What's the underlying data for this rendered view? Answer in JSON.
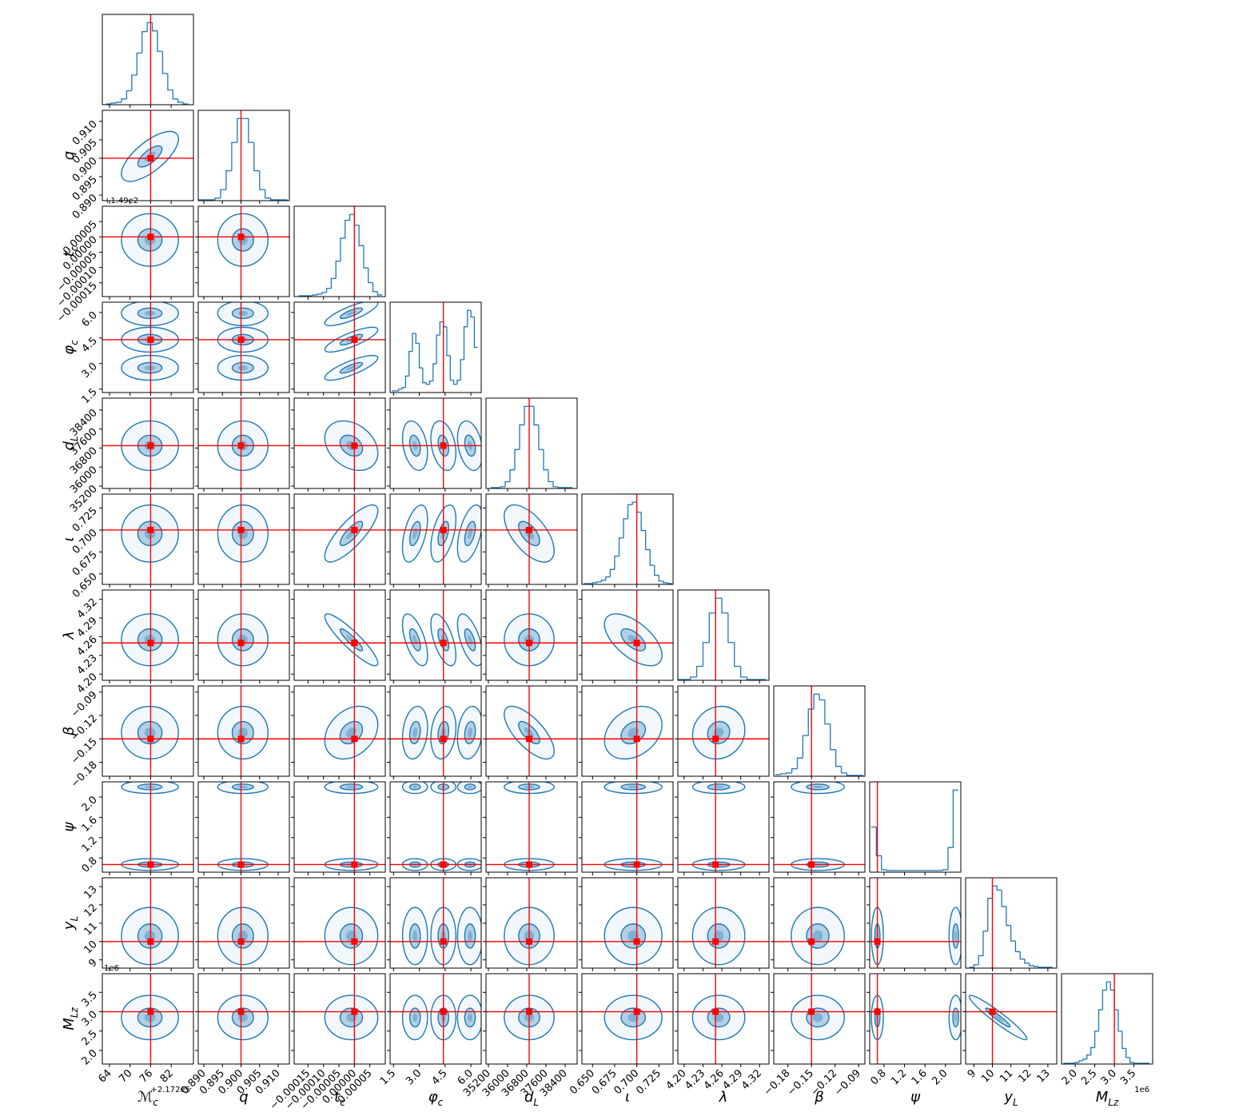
{
  "chart_data": {
    "type": "corner",
    "color": "#1f77b4",
    "truth_color": "#ff0000",
    "parameters": [
      {
        "symbol": "ℳ",
        "subscript": "c",
        "x_offset": "+2.172e5",
        "lim": [
          61.9,
          88.5
        ],
        "ticks": [
          64,
          70,
          76,
          82
        ],
        "truth": 76,
        "bins": [
          63,
          64.5,
          66,
          67.5,
          69,
          70.5,
          72,
          73.5,
          75,
          76.5,
          78,
          79.5,
          81,
          82.5,
          84,
          85.5,
          87
        ],
        "counts": [
          1,
          2,
          3,
          7,
          17,
          36,
          63,
          89,
          100,
          90,
          65,
          38,
          18,
          7,
          3,
          1
        ],
        "modes": [
          {
            "mean": 75.8,
            "sd": 3.2
          }
        ]
      },
      {
        "symbol": "q",
        "lim": [
          0.8885,
          0.913
        ],
        "ticks": [
          {
            "value": 0.89,
            "label": "0.890"
          },
          0.895,
          {
            "value": 0.9,
            "label": "0.900"
          },
          0.905,
          {
            "value": 0.91,
            "label": "0.910"
          }
        ],
        "truth": 0.9,
        "bins": [
          0.8885,
          0.89,
          0.8915,
          0.893,
          0.8945,
          0.896,
          0.8975,
          0.899,
          0.9005,
          0.902,
          0.9035,
          0.905,
          0.9065,
          0.908,
          0.9095,
          0.911,
          0.9125
        ],
        "counts": [
          1,
          1,
          1,
          3,
          13,
          35,
          68,
          96,
          96,
          68,
          35,
          13,
          3,
          1,
          1,
          1
        ],
        "modes": [
          {
            "mean": 0.9005,
            "sd": 0.0026
          }
        ]
      },
      {
        "symbol": "t",
        "subscript": "c",
        "y_offset": "+1.49e2",
        "lim": [
          -0.000195,
          0.0001
        ],
        "ticks": [
          {
            "value": -0.00015,
            "label": "−0.00015"
          },
          {
            "value": -0.0001,
            "label": "−0.00010"
          },
          {
            "value": -5e-05,
            "label": "−0.00005"
          },
          {
            "value": 0,
            "label": "0.00000"
          },
          5e-05
        ],
        "truth": 0,
        "bins": [
          -0.00018,
          -0.000165,
          -0.00015,
          -0.000135,
          -0.00012,
          -0.000105,
          -9e-05,
          -7.5e-05,
          -6e-05,
          -4.5e-05,
          -3e-05,
          -1.5e-05,
          0,
          1.5e-05,
          3e-05,
          4.5e-05,
          6e-05,
          7.5e-05,
          9e-05
        ],
        "counts": [
          1,
          1,
          1,
          2,
          3,
          5,
          10,
          22,
          43,
          71,
          93,
          100,
          87,
          62,
          35,
          17,
          6,
          2
        ],
        "modes": [
          {
            "mean": -1e-05,
            "sd": 3.3e-05
          }
        ]
      },
      {
        "symbol": "φ",
        "subscript": "c",
        "lim": [
          1.3,
          6.6
        ],
        "ticks": [
          1.5,
          {
            "value": 3,
            "label": "3.0"
          },
          4.5,
          {
            "value": 6,
            "label": "6.0"
          }
        ],
        "truth": 4.4,
        "bins": [
          1.4,
          1.6,
          1.8,
          2.0,
          2.2,
          2.4,
          2.6,
          2.8,
          3.0,
          3.2,
          3.4,
          3.6,
          3.8,
          4.0,
          4.2,
          4.4,
          4.6,
          4.8,
          5.0,
          5.2,
          5.4,
          5.6,
          5.8,
          6.0,
          6.2,
          6.4
        ],
        "counts": [
          2,
          2,
          4,
          6,
          20,
          50,
          72,
          60,
          30,
          12,
          10,
          14,
          35,
          70,
          86,
          80,
          45,
          15,
          10,
          15,
          40,
          80,
          100,
          92,
          55
        ],
        "modes": [
          {
            "mean": 2.75,
            "sd": 0.28
          },
          {
            "mean": 4.4,
            "sd": 0.28
          },
          {
            "mean": 5.95,
            "sd": 0.28
          }
        ]
      },
      {
        "symbol": "d",
        "subscript": "L",
        "lim": [
          35100,
          38900
        ],
        "ticks": [
          35200,
          36000,
          36800,
          37600,
          38400
        ],
        "truth": 36900,
        "bins": [
          35300,
          35500,
          35700,
          35900,
          36100,
          36300,
          36500,
          36700,
          36900,
          37100,
          37300,
          37500,
          37700,
          37900,
          38100,
          38300,
          38500,
          38700
        ],
        "counts": [
          1,
          1,
          2,
          8,
          22,
          46,
          75,
          97,
          97,
          75,
          46,
          22,
          8,
          2,
          1,
          1,
          1
        ],
        "modes": [
          {
            "mean": 36900,
            "sd": 400
          }
        ]
      },
      {
        "symbol": "ι",
        "lim": [
          0.638,
          0.741
        ],
        "ticks": [
          {
            "value": 0.65,
            "label": "0.650"
          },
          0.675,
          {
            "value": 0.7,
            "label": "0.700"
          },
          0.725
        ],
        "truth": 0.7,
        "bins": [
          0.64,
          0.645,
          0.65,
          0.655,
          0.66,
          0.665,
          0.67,
          0.675,
          0.68,
          0.685,
          0.69,
          0.695,
          0.7,
          0.705,
          0.71,
          0.715,
          0.72,
          0.725,
          0.73,
          0.735,
          0.74
        ],
        "counts": [
          1,
          1,
          2,
          3,
          5,
          9,
          18,
          34,
          56,
          79,
          96,
          99,
          87,
          65,
          42,
          23,
          11,
          4,
          2,
          1
        ],
        "modes": [
          {
            "mean": 0.696,
            "sd": 0.0125
          }
        ]
      },
      {
        "symbol": "λ",
        "lim": [
          4.19,
          4.335
        ],
        "ticks": [
          {
            "value": 4.2,
            "label": "4.20"
          },
          4.23,
          4.26,
          4.29,
          4.32
        ],
        "truth": 4.25,
        "bins": [
          4.19,
          4.2,
          4.21,
          4.22,
          4.23,
          4.24,
          4.25,
          4.26,
          4.27,
          4.28,
          4.29,
          4.3,
          4.31,
          4.32,
          4.33
        ],
        "counts": [
          1,
          1,
          4,
          17,
          46,
          82,
          100,
          82,
          46,
          17,
          4,
          1,
          1,
          1
        ],
        "modes": [
          {
            "mean": 4.255,
            "sd": 0.016
          }
        ]
      },
      {
        "symbol": "β",
        "lim": [
          -0.198,
          -0.082
        ],
        "ticks": [
          {
            "value": -0.18,
            "label": "−0.18"
          },
          {
            "value": -0.15,
            "label": "−0.15"
          },
          {
            "value": -0.12,
            "label": "−0.12"
          },
          {
            "value": -0.09,
            "label": "−0.09"
          }
        ],
        "truth": -0.15,
        "bins": [
          -0.196,
          -0.189,
          -0.182,
          -0.175,
          -0.168,
          -0.161,
          -0.154,
          -0.147,
          -0.14,
          -0.133,
          -0.126,
          -0.119,
          -0.112,
          -0.105,
          -0.098,
          -0.091,
          -0.084
        ],
        "counts": [
          2,
          3,
          4,
          9,
          22,
          49,
          81,
          99,
          92,
          63,
          32,
          12,
          4,
          1,
          1,
          1
        ],
        "modes": [
          {
            "mean": -0.142,
            "sd": 0.013
          }
        ]
      },
      {
        "symbol": "ψ",
        "lim": [
          0.52,
          2.3
        ],
        "ticks": [
          0.8,
          1.2,
          1.6,
          {
            "value": 2,
            "label": "2.0"
          }
        ],
        "truth": 0.67,
        "bins": [
          0.55,
          0.65,
          0.75,
          0.85,
          0.95,
          1.05,
          1.15,
          1.25,
          1.35,
          1.45,
          1.55,
          1.65,
          1.75,
          1.85,
          1.95,
          2.05,
          2.15,
          2.25
        ],
        "counts": [
          55,
          20,
          3,
          2,
          2,
          2,
          2,
          2,
          2,
          2,
          2,
          2,
          2,
          2,
          3,
          30,
          100
        ],
        "modes": [
          {
            "mean": 0.67,
            "sd": 0.045
          },
          {
            "mean": 2.2,
            "sd": 0.05
          }
        ]
      },
      {
        "symbol": "y",
        "subscript": "L",
        "lim": [
          8.55,
          13.48
        ],
        "ticks": [
          9,
          10,
          11,
          12,
          13
        ],
        "truth": 10,
        "bins": [
          8.75,
          9,
          9.25,
          9.5,
          9.75,
          10,
          10.25,
          10.5,
          10.75,
          11,
          11.25,
          11.5,
          11.75,
          12,
          12.25,
          12.5,
          12.75,
          13,
          13.25
        ],
        "counts": [
          1,
          4,
          15,
          45,
          85,
          100,
          95,
          75,
          52,
          33,
          20,
          11,
          6,
          3,
          2,
          1,
          1,
          1
        ],
        "modes": [
          {
            "mean": 10.3,
            "sd": 0.6
          }
        ]
      },
      {
        "symbol": "M",
        "subscript": "Lz",
        "x_offset": "1e6",
        "y_offset": "1e6",
        "lim": [
          1.65,
          3.98
        ],
        "ticks": [
          {
            "value": 2,
            "label": "2.0"
          },
          2.5,
          {
            "value": 3,
            "label": "3.0"
          },
          3.5
        ],
        "truth": 3,
        "bins": [
          1.7,
          1.8,
          1.9,
          2.0,
          2.1,
          2.2,
          2.3,
          2.4,
          2.5,
          2.6,
          2.7,
          2.8,
          2.9,
          3.0,
          3.1,
          3.2,
          3.3,
          3.4,
          3.5,
          3.6,
          3.7,
          3.8,
          3.9
        ],
        "counts": [
          1,
          1,
          1,
          2,
          4,
          6,
          11,
          20,
          40,
          66,
          90,
          100,
          90,
          66,
          40,
          19,
          8,
          2,
          1,
          1,
          1,
          1
        ],
        "modes": [
          {
            "mean": 2.85,
            "sd": 0.22
          }
        ]
      }
    ],
    "correlations": [
      {
        "pair": [
          0,
          1
        ],
        "rho": 0.7
      },
      {
        "pair": [
          2,
          3
        ],
        "rho": 0.8
      },
      {
        "pair": [
          2,
          4
        ],
        "rho": -0.3
      },
      {
        "pair": [
          2,
          5
        ],
        "rho": 0.8
      },
      {
        "pair": [
          2,
          6
        ],
        "rho": -0.9
      },
      {
        "pair": [
          2,
          7
        ],
        "rho": 0.3
      },
      {
        "pair": [
          3,
          4
        ],
        "rho": -0.3
      },
      {
        "pair": [
          3,
          5
        ],
        "rho": 0.5
      },
      {
        "pair": [
          3,
          6
        ],
        "rho": -0.6
      },
      {
        "pair": [
          3,
          7
        ],
        "rho": 0.2
      },
      {
        "pair": [
          4,
          5
        ],
        "rho": -0.6
      },
      {
        "pair": [
          4,
          7
        ],
        "rho": -0.7
      },
      {
        "pair": [
          5,
          6
        ],
        "rho": -0.6
      },
      {
        "pair": [
          5,
          7
        ],
        "rho": 0.3
      },
      {
        "pair": [
          6,
          7
        ],
        "rho": 0.1
      },
      {
        "pair": [
          9,
          10
        ],
        "rho": -0.95
      }
    ]
  }
}
